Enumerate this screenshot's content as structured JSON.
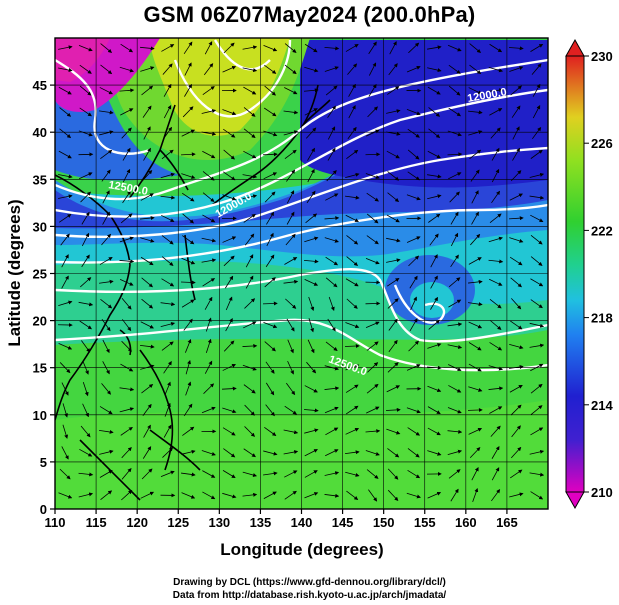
{
  "title": "GSM 06Z07May2024 (200.0hPa)",
  "map": {
    "xlabel": "Longitude (degrees)",
    "ylabel": "Latitude  (degrees)",
    "xlim": [
      110,
      170
    ],
    "ylim": [
      0,
      50
    ],
    "xticks": [
      110,
      115,
      120,
      125,
      130,
      135,
      140,
      145,
      150,
      155,
      160,
      165
    ],
    "yticks": [
      0,
      5,
      10,
      15,
      20,
      25,
      30,
      35,
      40,
      45
    ],
    "grid": true,
    "field": "temperature shading with geopotential height contours and wind streamlines"
  },
  "colorbar": {
    "ticks": [
      210,
      214,
      218,
      222,
      226,
      230
    ],
    "range": [
      210,
      230
    ],
    "colors": [
      "#e000c0",
      "#2020d0",
      "#20c0e0",
      "#30d030",
      "#c0e020",
      "#e02020"
    ]
  },
  "contour_labels": [
    "12000.0",
    "12000.0",
    "12500.0",
    "12500.0"
  ],
  "credits": {
    "line1": "Drawing by DCL (https://www.gfd-dennou.org/library/dcl/)",
    "line2": "Data from http://database.rish.kyoto-u.ac.jp/arch/jmadata/"
  }
}
